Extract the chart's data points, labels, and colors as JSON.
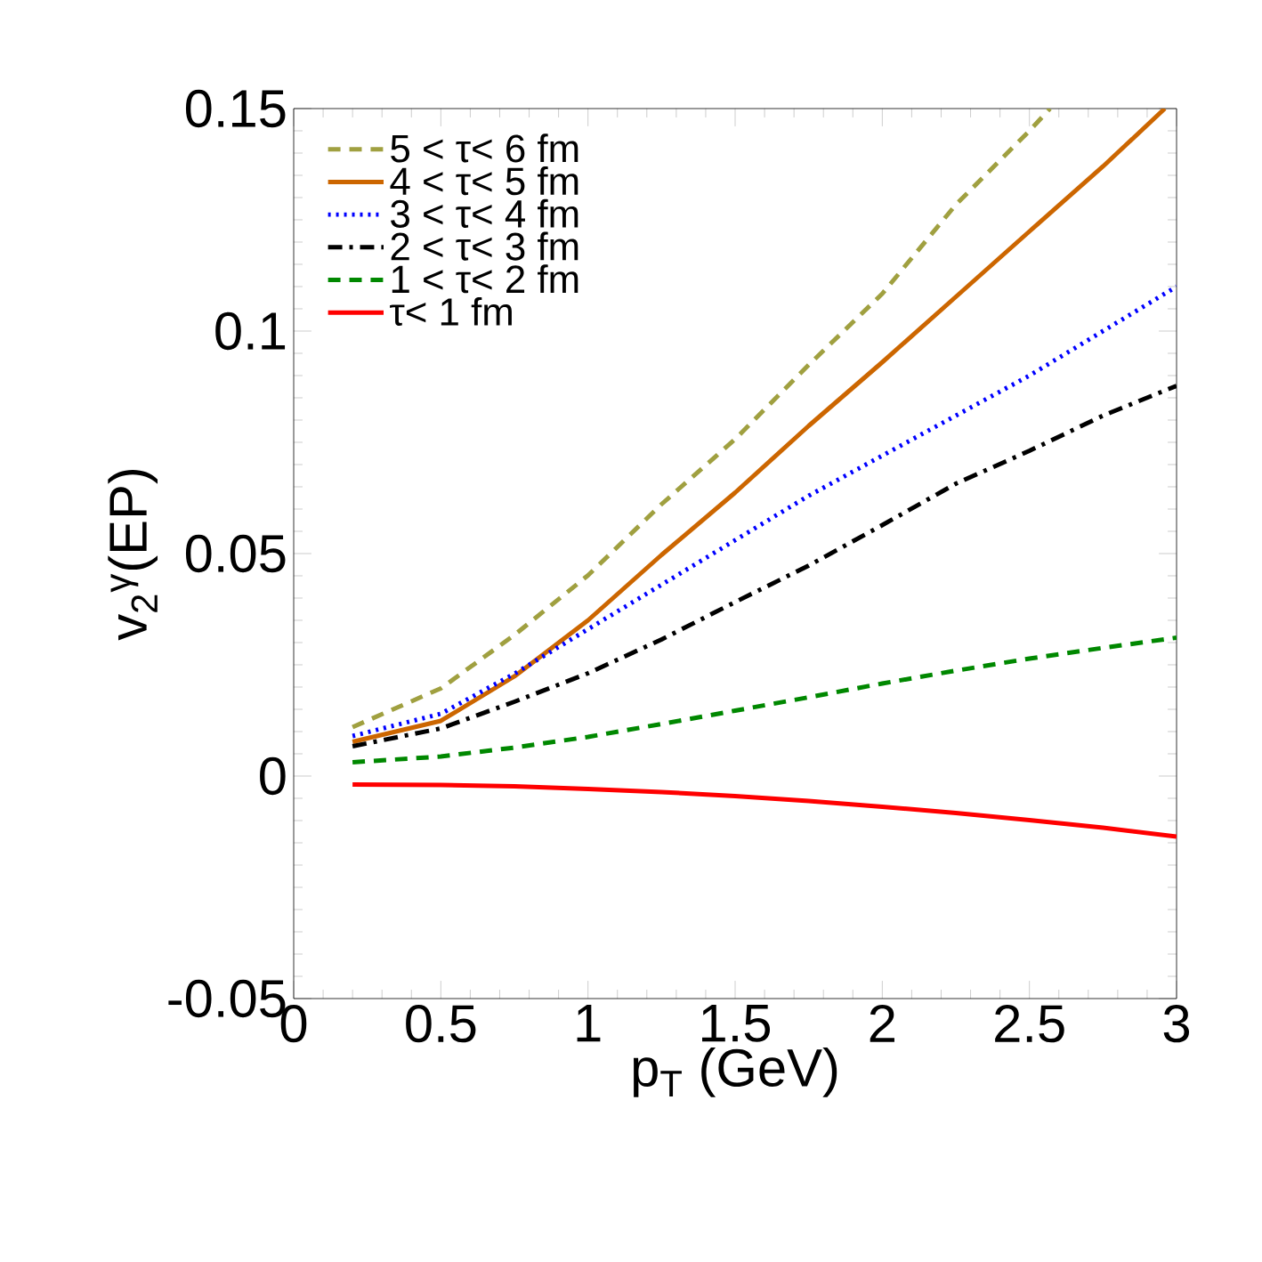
{
  "chart_data": {
    "type": "line",
    "xlabel": "p$_{T}$ (GeV)",
    "ylabel": "v$_{2}$$^{γ}$(EP)",
    "xlim": [
      0,
      3
    ],
    "ylim": [
      -0.05,
      0.15
    ],
    "xticks": [
      0,
      0.5,
      1,
      1.5,
      2,
      2.5,
      3
    ],
    "yticks": [
      -0.05,
      0,
      0.05,
      0.1,
      0.15
    ],
    "legend": "top left",
    "grid": false,
    "marker": "none",
    "series": [
      {
        "name": "5 < τ< 6 fm",
        "color": "#a0a040",
        "line_style": "dashed",
        "x": [
          0.2,
          0.5,
          0.75,
          1,
          1.25,
          1.5,
          1.75,
          2,
          2.25,
          2.5,
          2.57
        ],
        "values": [
          0.011,
          0.0197,
          0.0317,
          0.0451,
          0.0611,
          0.0757,
          0.0924,
          0.1084,
          0.1284,
          0.145,
          0.15
        ]
      },
      {
        "name": "4 < τ< 5 fm",
        "color": "#cc6600",
        "line_style": "solid",
        "x": [
          0.2,
          0.5,
          0.75,
          1,
          1.25,
          1.5,
          1.75,
          2,
          2.25,
          2.5,
          2.75,
          2.96
        ],
        "values": [
          0.0077,
          0.0124,
          0.0224,
          0.035,
          0.0497,
          0.0637,
          0.0787,
          0.093,
          0.1077,
          0.1224,
          0.137,
          0.15
        ]
      },
      {
        "name": "3 < τ< 4 fm",
        "color": "#0000ff",
        "line_style": "dotted",
        "x": [
          0.2,
          0.5,
          0.75,
          1,
          1.25,
          1.5,
          1.75,
          2,
          2.25,
          2.5,
          2.75,
          3
        ],
        "values": [
          0.009,
          0.014,
          0.023,
          0.033,
          0.043,
          0.053,
          0.063,
          0.072,
          0.081,
          0.09,
          0.1,
          0.11
        ]
      },
      {
        "name": "2 < τ< 3 fm",
        "color": "#000000",
        "line_style": "dashdot",
        "x": [
          0.2,
          0.5,
          0.75,
          1,
          1.25,
          1.5,
          1.75,
          2,
          2.25,
          2.5,
          2.75,
          3
        ],
        "values": [
          0.0067,
          0.0107,
          0.0167,
          0.0231,
          0.0307,
          0.0391,
          0.0473,
          0.0564,
          0.0657,
          0.0731,
          0.081,
          0.0877
        ]
      },
      {
        "name": "1 < τ< 2 fm",
        "color": "#008800",
        "line_style": "dashed",
        "x": [
          0.2,
          0.5,
          0.75,
          1,
          1.25,
          1.5,
          1.75,
          2,
          2.25,
          2.5,
          2.75,
          3
        ],
        "values": [
          0.0031,
          0.0044,
          0.0064,
          0.0088,
          0.0117,
          0.0147,
          0.0177,
          0.0208,
          0.0237,
          0.0264,
          0.0288,
          0.0311
        ]
      },
      {
        "name": "τ< 1 fm",
        "color": "#ff0000",
        "line_style": "solid",
        "x": [
          0.2,
          0.5,
          0.75,
          1,
          1.25,
          1.5,
          1.75,
          2,
          2.25,
          2.5,
          2.75,
          3
        ],
        "values": [
          -0.0019,
          -0.002,
          -0.0023,
          -0.0029,
          -0.0036,
          -0.0045,
          -0.0056,
          -0.0069,
          -0.0083,
          -0.0099,
          -0.0116,
          -0.0136
        ]
      }
    ]
  }
}
